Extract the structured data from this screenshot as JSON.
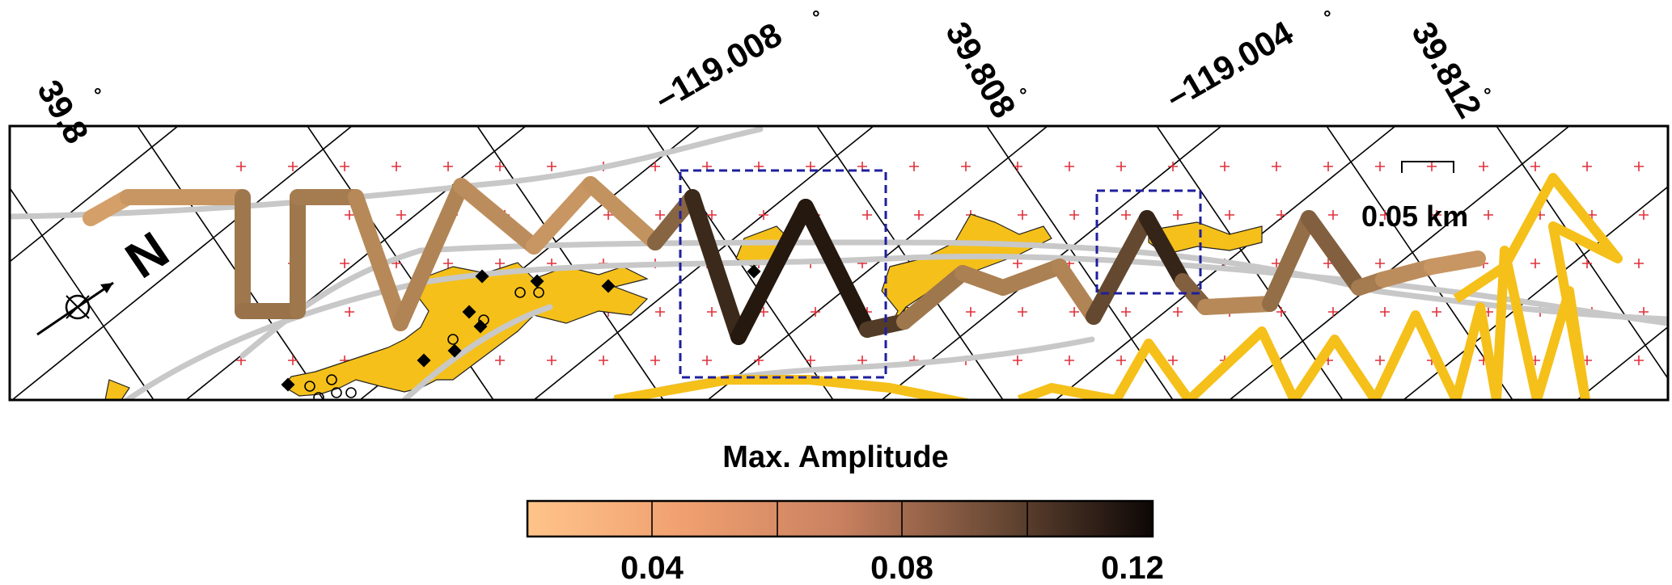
{
  "map": {
    "top_labels": [
      {
        "text": "39.8",
        "deg": "°"
      },
      {
        "text": "–119.008",
        "deg": "°"
      },
      {
        "text": "39.808",
        "deg": "°"
      },
      {
        "text": "–119.004",
        "deg": "°"
      },
      {
        "text": "39.812",
        "deg": "°"
      }
    ],
    "north_label": "N",
    "scale_label": "0.05 km",
    "legend": {
      "title": "Max. Amplitude",
      "ticks": [
        "0.04",
        "0.08",
        "0.12"
      ],
      "colors": [
        "#fdbf7d",
        "#e8926a",
        "#b8764f",
        "#6b4a36",
        "#1a0f0a"
      ]
    },
    "colors": {
      "deposit": "#f5c019",
      "road": "#c8c8c8",
      "box": "#1f1f9e",
      "grid_marker": "#e0303a",
      "track_low": "#fdbf7d",
      "track_high": "#120a06"
    }
  }
}
